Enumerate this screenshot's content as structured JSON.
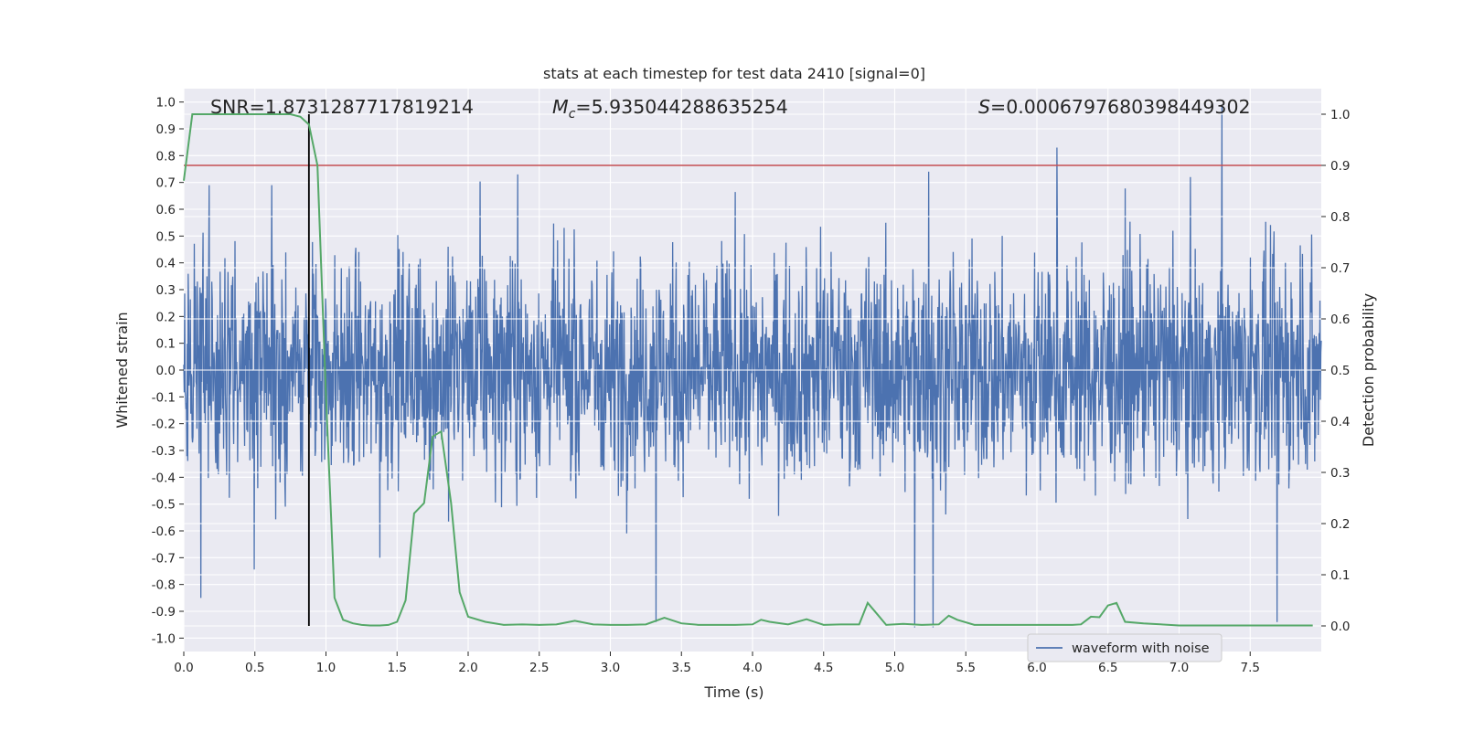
{
  "chart_data": {
    "type": "line",
    "title": "stats at each timestep for test data 2410 [signal=0]",
    "xlabel": "Time (s)",
    "ylabel_left": "Whitened strain",
    "ylabel_right": "Detection probability",
    "xlim": [
      0.0,
      8.0
    ],
    "ylim_left": [
      -1.05,
      1.05
    ],
    "ylim_right": [
      -0.05,
      1.05
    ],
    "x_ticks": [
      "0.0",
      "0.5",
      "1.0",
      "1.5",
      "2.0",
      "2.5",
      "3.0",
      "3.5",
      "4.0",
      "4.5",
      "5.0",
      "5.5",
      "6.0",
      "6.5",
      "7.0",
      "7.5"
    ],
    "x_tick_values": [
      0.0,
      0.5,
      1.0,
      1.5,
      2.0,
      2.5,
      3.0,
      3.5,
      4.0,
      4.5,
      5.0,
      5.5,
      6.0,
      6.5,
      7.0,
      7.5
    ],
    "y_left_ticks": [
      "-1.0",
      "-0.9",
      "-0.8",
      "-0.7",
      "-0.6",
      "-0.5",
      "-0.4",
      "-0.3",
      "-0.2",
      "-0.1",
      "0.0",
      "0.1",
      "0.2",
      "0.3",
      "0.4",
      "0.5",
      "0.6",
      "0.7",
      "0.8",
      "0.9",
      "1.0"
    ],
    "y_left_tick_values": [
      -1.0,
      -0.9,
      -0.8,
      -0.7,
      -0.6,
      -0.5,
      -0.4,
      -0.3,
      -0.2,
      -0.1,
      0.0,
      0.1,
      0.2,
      0.3,
      0.4,
      0.5,
      0.6,
      0.7,
      0.8,
      0.9,
      1.0
    ],
    "y_right_ticks": [
      "0.0",
      "0.1",
      "0.2",
      "0.3",
      "0.4",
      "0.5",
      "0.6",
      "0.7",
      "0.8",
      "0.9",
      "1.0"
    ],
    "y_right_tick_values": [
      0.0,
      0.1,
      0.2,
      0.3,
      0.4,
      0.5,
      0.6,
      0.7,
      0.8,
      0.9,
      1.0
    ],
    "annotations": {
      "snr": "SNR=1.8731287717819214",
      "mc_symbol": "M",
      "mc_sub": "c",
      "mc_value": "=5.935044288635254",
      "s_symbol": "S",
      "s_value": "=0.0006797680398449302"
    },
    "threshold_right": 0.9,
    "vline_x": 0.88,
    "legend": {
      "entries": [
        "waveform with noise"
      ],
      "placement": "lower-right"
    },
    "grid": true,
    "series": [
      {
        "name": "waveform with noise",
        "axis": "left",
        "color": "#4c72b0",
        "kind": "noise",
        "duration": 8.0,
        "envelope_typical": 0.42,
        "peaks": [
          {
            "x": 0.12,
            "y": -0.85
          },
          {
            "x": 0.18,
            "y": 0.69
          },
          {
            "x": 0.62,
            "y": 0.69
          },
          {
            "x": 2.35,
            "y": 0.73
          },
          {
            "x": 3.32,
            "y": -0.94
          },
          {
            "x": 5.14,
            "y": -0.96
          },
          {
            "x": 5.27,
            "y": -0.96
          },
          {
            "x": 5.24,
            "y": 0.74
          },
          {
            "x": 6.14,
            "y": 0.83
          },
          {
            "x": 7.3,
            "y": 0.99
          },
          {
            "x": 7.69,
            "y": -0.94
          },
          {
            "x": 1.38,
            "y": -0.7
          }
        ]
      },
      {
        "name": "detection probability",
        "axis": "right",
        "color": "#55a868",
        "x": [
          0.0,
          0.06,
          0.12,
          0.25,
          0.5,
          0.75,
          0.82,
          0.88,
          0.94,
          1.0,
          1.06,
          1.12,
          1.19,
          1.25,
          1.31,
          1.38,
          1.44,
          1.5,
          1.56,
          1.62,
          1.69,
          1.75,
          1.81,
          1.88,
          1.94,
          2.0,
          2.12,
          2.25,
          2.38,
          2.5,
          2.62,
          2.75,
          2.88,
          3.0,
          3.12,
          3.25,
          3.38,
          3.5,
          3.62,
          3.75,
          3.88,
          4.0,
          4.06,
          4.12,
          4.25,
          4.38,
          4.5,
          4.62,
          4.75,
          4.81,
          4.88,
          4.94,
          5.06,
          5.19,
          5.31,
          5.38,
          5.44,
          5.56,
          6.0,
          6.25,
          6.31,
          6.38,
          6.44,
          6.5,
          6.56,
          6.62,
          6.75,
          7.0,
          7.5,
          7.94
        ],
        "values": [
          0.87,
          1.0,
          1.0,
          1.0,
          1.0,
          1.0,
          0.995,
          0.98,
          0.9,
          0.45,
          0.055,
          0.012,
          0.005,
          0.002,
          0.001,
          0.001,
          0.002,
          0.008,
          0.05,
          0.22,
          0.24,
          0.37,
          0.38,
          0.24,
          0.066,
          0.018,
          0.008,
          0.002,
          0.003,
          0.002,
          0.003,
          0.01,
          0.003,
          0.002,
          0.002,
          0.003,
          0.016,
          0.005,
          0.002,
          0.002,
          0.002,
          0.003,
          0.012,
          0.008,
          0.003,
          0.013,
          0.002,
          0.003,
          0.003,
          0.045,
          0.022,
          0.002,
          0.004,
          0.002,
          0.003,
          0.02,
          0.012,
          0.002,
          0.002,
          0.002,
          0.003,
          0.018,
          0.017,
          0.04,
          0.045,
          0.008,
          0.005,
          0.001,
          0.001,
          0.001
        ]
      }
    ]
  }
}
